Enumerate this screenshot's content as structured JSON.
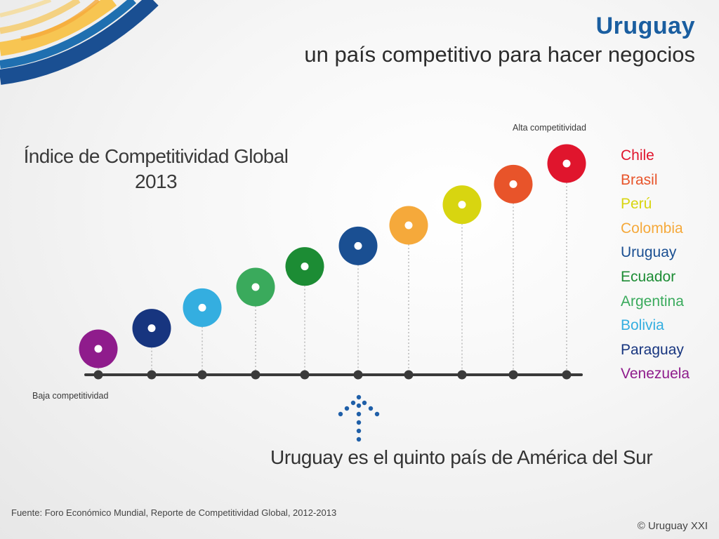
{
  "header": {
    "title": "Uruguay",
    "subtitle": "un país competitivo para hacer negocios"
  },
  "footer": {
    "source": "Fuente: Foro Económico Mundial, Reporte de Competitividad Global, 2012-2013",
    "copyright": "© Uruguay XXI"
  },
  "tagline": "Uruguay es el quinto país de América del Sur",
  "colors": {
    "title": "#1a5ea0",
    "axis": "#3a3a3a",
    "arrow": "#1f5fa8",
    "deco_blue": "#1a4f92",
    "deco_yellow": "#f7c552"
  },
  "chart_data": {
    "type": "scatter",
    "title": "Índice de Competitividad Global",
    "title_year": "2013",
    "low_label": "Baja competitividad",
    "high_label": "Alta competitividad",
    "series": [
      {
        "name": "Venezuela",
        "rank": 1,
        "color": "#8f1c8c"
      },
      {
        "name": "Paraguay",
        "rank": 2,
        "color": "#17357f"
      },
      {
        "name": "Bolivia",
        "rank": 3,
        "color": "#34aee0"
      },
      {
        "name": "Argentina",
        "rank": 4,
        "color": "#3aaa5c"
      },
      {
        "name": "Ecuador",
        "rank": 5,
        "color": "#1c8c34"
      },
      {
        "name": "Uruguay",
        "rank": 6,
        "color": "#1a4f92"
      },
      {
        "name": "Colombia",
        "rank": 7,
        "color": "#f5a93b"
      },
      {
        "name": "Perú",
        "rank": 8,
        "color": "#d8d510"
      },
      {
        "name": "Brasil",
        "rank": 9,
        "color": "#e8542a"
      },
      {
        "name": "Chile",
        "rank": 10,
        "color": "#e0152d"
      }
    ],
    "legend_order": [
      {
        "name": "Chile",
        "color": "#e0152d"
      },
      {
        "name": "Brasil",
        "color": "#e8542a"
      },
      {
        "name": "Perú",
        "color": "#d8d510"
      },
      {
        "name": "Colombia",
        "color": "#f5a93b"
      },
      {
        "name": "Uruguay",
        "color": "#1a4f92"
      },
      {
        "name": "Ecuador",
        "color": "#1c8c34"
      },
      {
        "name": "Argentina",
        "color": "#3aaa5c"
      },
      {
        "name": "Bolivia",
        "color": "#34aee0"
      },
      {
        "name": "Paraguay",
        "color": "#17357f"
      },
      {
        "name": "Venezuela",
        "color": "#8f1c8c"
      }
    ],
    "highlight": "Uruguay"
  }
}
